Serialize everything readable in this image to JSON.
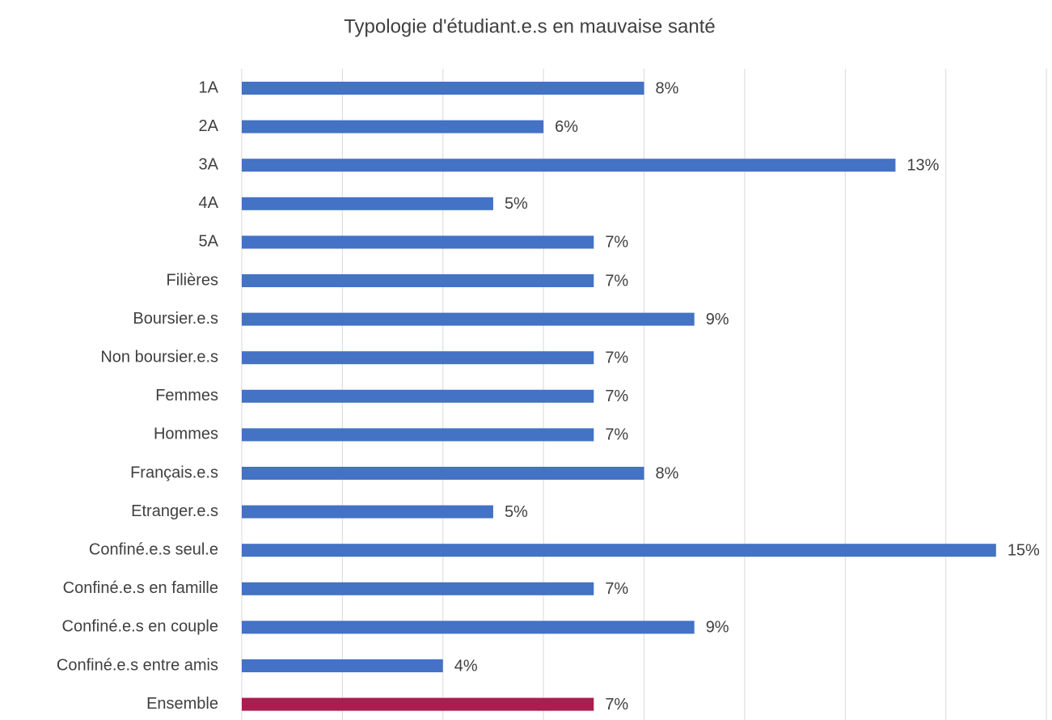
{
  "chart_data": {
    "type": "barh",
    "title": "Typologie d'étudiant.e.s en mauvaise santé",
    "categories": [
      "1A",
      "2A",
      "3A",
      "4A",
      "5A",
      "Filières",
      "Boursier.e.s",
      "Non boursier.e.s",
      "Femmes",
      "Hommes",
      "Français.e.s",
      "Etranger.e.s",
      "Confiné.e.s seul.e",
      "Confiné.e.s en famille",
      "Confiné.e.s en couple",
      "Confiné.e.s entre amis",
      "Ensemble"
    ],
    "values": [
      8,
      6,
      13,
      5,
      7,
      7,
      9,
      7,
      7,
      7,
      8,
      5,
      15,
      7,
      9,
      4,
      7
    ],
    "value_labels": [
      "8%",
      "6%",
      "13%",
      "5%",
      "7%",
      "7%",
      "9%",
      "7%",
      "7%",
      "7%",
      "8%",
      "5%",
      "15%",
      "7%",
      "9%",
      "4%",
      "7%"
    ],
    "colors": [
      "#4472c4",
      "#4472c4",
      "#4472c4",
      "#4472c4",
      "#4472c4",
      "#4472c4",
      "#4472c4",
      "#4472c4",
      "#4472c4",
      "#4472c4",
      "#4472c4",
      "#4472c4",
      "#4472c4",
      "#4472c4",
      "#4472c4",
      "#4472c4",
      "#a91e4f"
    ],
    "xlim": [
      0,
      16
    ],
    "xticks": [
      0,
      2,
      4,
      6,
      8,
      10,
      12,
      14,
      16
    ],
    "grid": true
  }
}
